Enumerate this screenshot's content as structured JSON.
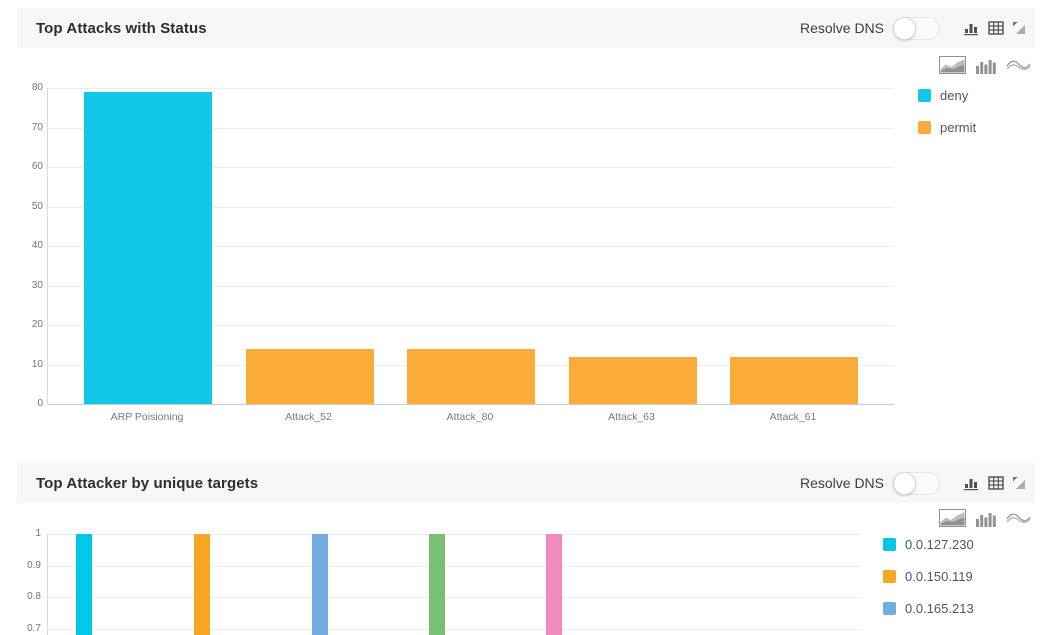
{
  "panels": [
    {
      "title": "Top Attacks with Status",
      "controls": {
        "resolve_dns_label": "Resolve DNS",
        "resolve_dns_toggle": "off",
        "header_icons": [
          "column-chart-icon",
          "table-icon",
          "resize-diagonal-icon"
        ],
        "chart_type_icons": [
          "area-chart-icon",
          "column-chart-icon",
          "spline-chart-icon"
        ]
      },
      "chart_data": {
        "type": "bar",
        "categories": [
          "ARP Poisioning",
          "Attack_52",
          "Attack_80",
          "Attack_63",
          "Attack_61"
        ],
        "series": [
          {
            "name": "deny",
            "color": "#12C8E8"
          },
          {
            "name": "permit",
            "color": "#FAAB39"
          }
        ],
        "points": [
          {
            "category": "ARP Poisioning",
            "series": "deny",
            "value": 79
          },
          {
            "category": "Attack_52",
            "series": "permit",
            "value": 14
          },
          {
            "category": "Attack_80",
            "series": "permit",
            "value": 14
          },
          {
            "category": "Attack_63",
            "series": "permit",
            "value": 12
          },
          {
            "category": "Attack_61",
            "series": "permit",
            "value": 12
          }
        ],
        "ylim": [
          0,
          80
        ],
        "yticks": [
          0,
          10,
          20,
          30,
          40,
          50,
          60,
          70,
          80
        ],
        "grid": true,
        "legend_position": "right"
      }
    },
    {
      "title": "Top Attacker by unique targets",
      "controls": {
        "resolve_dns_label": "Resolve DNS",
        "resolve_dns_toggle": "off",
        "header_icons": [
          "column-chart-icon",
          "table-icon",
          "resize-diagonal-icon"
        ],
        "chart_type_icons": [
          "area-chart-icon",
          "column-chart-icon",
          "spline-chart-icon"
        ]
      },
      "chart_data": {
        "type": "bar",
        "points": [
          {
            "series": "0.0.127.230",
            "color": "#00C6E8",
            "value": 1
          },
          {
            "series": "0.0.150.119",
            "color": "#F6A823",
            "value": 1
          },
          {
            "series": "0.0.165.213",
            "color": "#72ACE0",
            "value": 1
          },
          {
            "series": "",
            "color": "#79BF74",
            "value": 1
          },
          {
            "series": "",
            "color": "#F08BBD",
            "value": 1
          }
        ],
        "ylim": [
          0,
          1
        ],
        "yticks_visible": [
          1,
          0.9,
          0.8,
          0.7
        ],
        "grid": true,
        "legend_position": "right",
        "legend_entries": [
          {
            "label": "0.0.127.230",
            "color": "#00C6E8"
          },
          {
            "label": "0.0.150.119",
            "color": "#F6A823"
          },
          {
            "label": "0.0.165.213",
            "color": "#72ACE0"
          }
        ],
        "clipped_bottom": true
      }
    }
  ],
  "colors": {
    "panel_header_bg": "#f7f7f8",
    "grid": "#ececec",
    "axis": "#c9ccd0",
    "tick_text": "#6e757d",
    "legend_text": "#4e5763"
  }
}
